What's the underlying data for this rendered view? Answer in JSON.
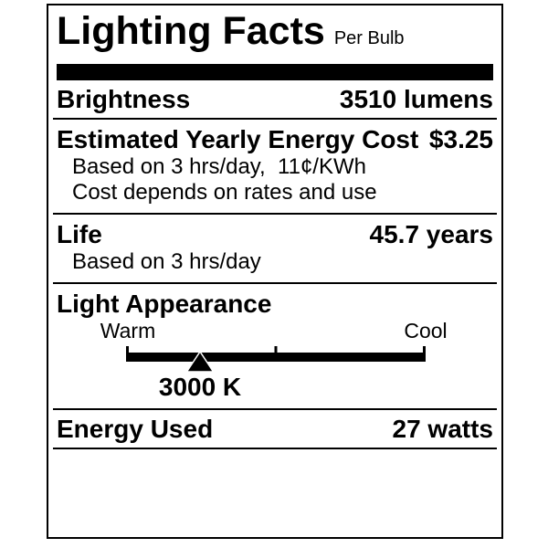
{
  "label": {
    "title": "Lighting Facts",
    "subtitle": "Per Bulb",
    "colors": {
      "ink": "#000000",
      "background": "#ffffff"
    },
    "rows": {
      "brightness": {
        "label": "Brightness",
        "value": "3510 lumens"
      },
      "energy_cost": {
        "label": "Estimated Yearly Energy Cost",
        "value": "$3.25",
        "notes": [
          "Based on 3 hrs/day,  11¢/KWh",
          "Cost depends on rates and use"
        ]
      },
      "life": {
        "label": "Life",
        "value": "45.7 years",
        "notes": [
          "Based on 3 hrs/day"
        ]
      },
      "light_appearance": {
        "label": "Light Appearance",
        "warm_label": "Warm",
        "cool_label": "Cool",
        "kelvin": "3000 K",
        "marker_percent": 24.7
      },
      "energy_used": {
        "label": "Energy Used",
        "value": "27 watts"
      }
    }
  }
}
